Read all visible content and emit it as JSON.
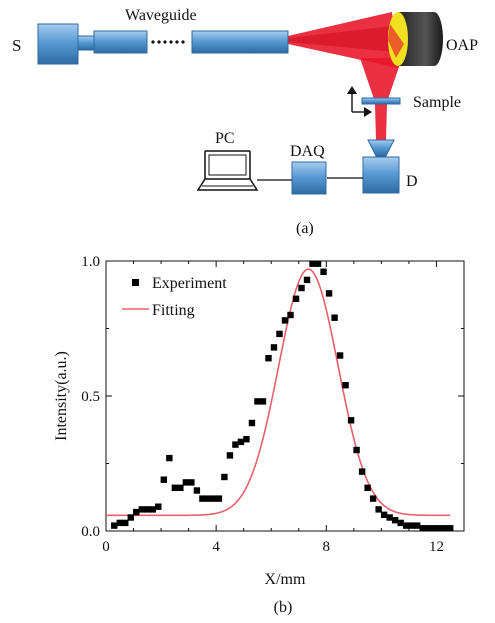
{
  "panel_a": {
    "labels": {
      "source": "S",
      "waveguide": "Waveguide",
      "mirror": "OAP",
      "sample": "Sample",
      "computer": "PC",
      "daq": "DAQ",
      "detector": "D"
    },
    "caption": "(a)",
    "colors": {
      "component_fill": "#5b9bd5",
      "beam": "#e8192c",
      "mirror_body": "#333333",
      "mirror_face": "#f0e020"
    }
  },
  "panel_b": {
    "caption": "(b)",
    "chart_data": {
      "type": "scatter",
      "xlabel": "X/mm",
      "ylabel": "Intensity(a.u.)",
      "xlim": [
        0,
        13
      ],
      "ylim": [
        0,
        1.0
      ],
      "x_ticks": [
        0,
        4,
        8,
        12
      ],
      "y_ticks": [
        0.0,
        0.5,
        1.0
      ],
      "x_tick_labels": [
        "0",
        "4",
        "8",
        "12"
      ],
      "y_tick_labels": [
        "0.0",
        "0.5",
        "1.0"
      ],
      "grid": false,
      "legend_position": "top-left",
      "series": [
        {
          "name": "Experiment",
          "style": "square-markers",
          "color": "#000000",
          "x": [
            0.3,
            0.5,
            0.7,
            0.9,
            1.1,
            1.3,
            1.5,
            1.7,
            1.9,
            2.1,
            2.3,
            2.5,
            2.7,
            2.9,
            3.1,
            3.3,
            3.5,
            3.7,
            3.9,
            4.1,
            4.3,
            4.5,
            4.7,
            4.9,
            5.1,
            5.3,
            5.5,
            5.7,
            5.9,
            6.1,
            6.3,
            6.5,
            6.7,
            6.9,
            7.1,
            7.3,
            7.5,
            7.7,
            7.9,
            8.1,
            8.3,
            8.5,
            8.7,
            8.9,
            9.1,
            9.3,
            9.5,
            9.7,
            9.9,
            10.1,
            10.3,
            10.5,
            10.7,
            10.9,
            11.1,
            11.3,
            11.5,
            11.7,
            11.9,
            12.1,
            12.3,
            12.5
          ],
          "y": [
            0.02,
            0.03,
            0.03,
            0.05,
            0.07,
            0.08,
            0.08,
            0.08,
            0.09,
            0.19,
            0.27,
            0.16,
            0.16,
            0.18,
            0.18,
            0.15,
            0.12,
            0.12,
            0.12,
            0.12,
            0.2,
            0.28,
            0.32,
            0.33,
            0.34,
            0.4,
            0.48,
            0.48,
            0.64,
            0.68,
            0.73,
            0.78,
            0.8,
            0.86,
            0.9,
            0.93,
            0.99,
            0.99,
            0.96,
            0.88,
            0.79,
            0.65,
            0.54,
            0.41,
            0.3,
            0.22,
            0.16,
            0.12,
            0.08,
            0.06,
            0.05,
            0.04,
            0.03,
            0.02,
            0.02,
            0.02,
            0.01,
            0.01,
            0.01,
            0.01,
            0.01,
            0.01
          ]
        },
        {
          "name": "Fitting",
          "style": "line",
          "color": "#e8616a",
          "model": "gaussian",
          "offset": 0.058,
          "amplitude": 0.912,
          "center": 7.35,
          "sigma": 1.08,
          "x_range": [
            0.0,
            12.5
          ]
        }
      ]
    }
  }
}
